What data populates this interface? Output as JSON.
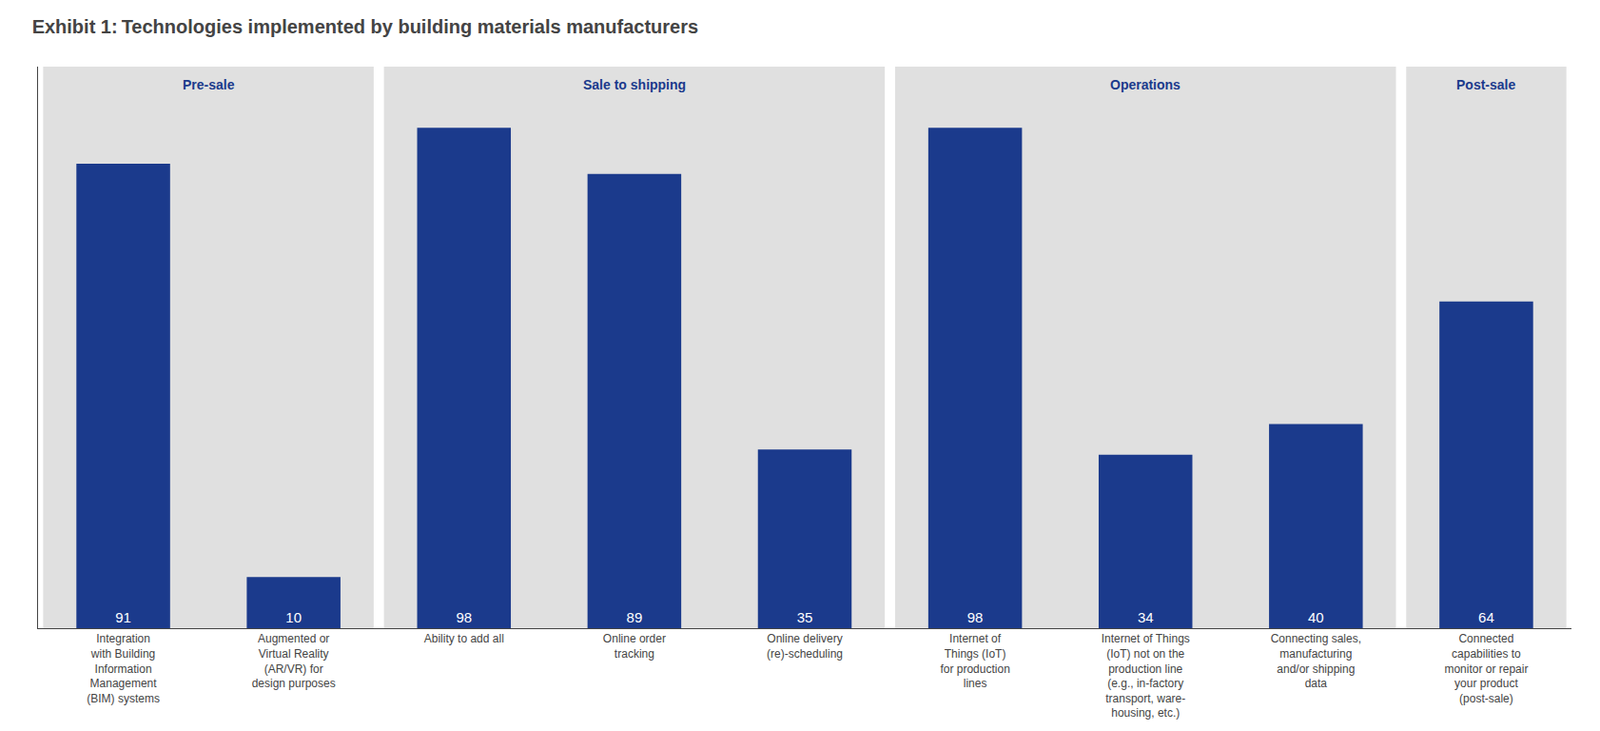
{
  "chart_data": {
    "type": "bar",
    "title": "Exhibit 1: Technologies implemented by building materials manufacturers",
    "categories": [
      "Integration\nwith Building\nInformation\nManagement\n(BIM) systems",
      "Augmented or\nVirtual Reality\n(AR/VR) for\ndesign purposes",
      "Ability to add all",
      "Online order\ntracking",
      "Online delivery\n(re)-scheduling",
      "Internet of\nThings (IoT)\nfor production\nlines",
      "Internet of Things\n(IoT) not on the\nproduction line\n(e.g., in-factory\ntransport, ware-\nhousing, etc.)",
      "Connecting sales,\nmanufacturing\nand/or shipping\ndata",
      "Connected\ncapabilities to\nmonitor or repair\nyour product\n(post-sale)"
    ],
    "values": [
      91,
      10,
      98,
      89,
      35,
      98,
      34,
      40,
      64
    ],
    "color": "#1b3a8c",
    "ylim": [
      0,
      110
    ],
    "yticks": [],
    "grid": false,
    "data_labels": true,
    "tick_labels": "x",
    "groups": [
      {
        "label": "Pre-sale",
        "color": "#e0e0e0",
        "categories": [
          "Integration\nwith Building\nInformation\nManagement\n(BIM) systems",
          "Augmented or\nVirtual Reality\n(AR/VR) for\ndesign purposes"
        ]
      },
      {
        "label": "Sale to shipping",
        "color": "#e0e0e0",
        "categories": [
          "Ability to add all",
          "Online order\ntracking",
          "Online delivery\n(re)-scheduling"
        ]
      },
      {
        "label": "Operations",
        "color": "#e0e0e0",
        "categories": [
          "Internet of\nThings (IoT)\nfor production\nlines",
          "Internet of Things\n(IoT) not on the\nproduction line\n(e.g., in-factory\ntransport, ware-\nhousing, etc.)",
          "Connecting sales,\nmanufacturing\nand/or shipping\ndata"
        ]
      },
      {
        "label": "Post-sale",
        "color": "#e0e0e0",
        "categories": [
          "Connected\ncapabilities to\nmonitor or repair\nyour product\n(post-sale)"
        ]
      }
    ]
  }
}
